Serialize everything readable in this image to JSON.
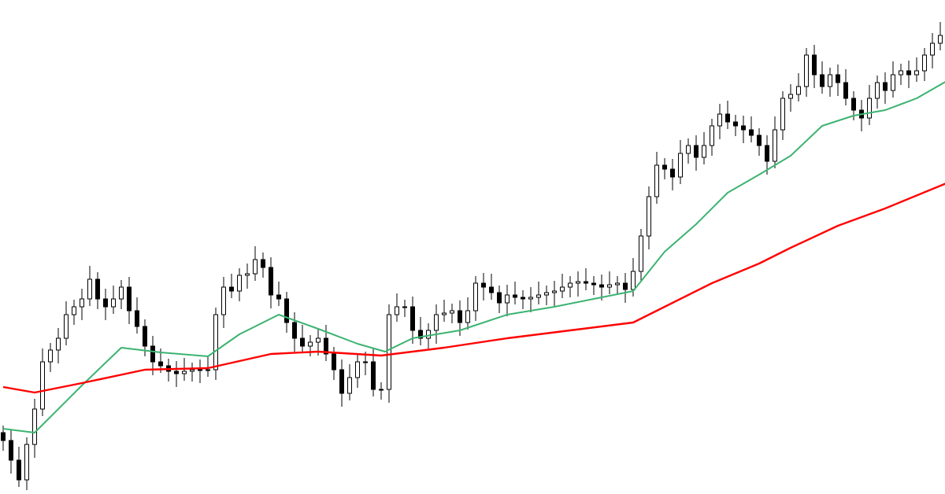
{
  "chart_data": {
    "type": "candlestick",
    "title": "",
    "xlabel": "",
    "ylabel": "",
    "ylim": [
      0,
      62.8
    ],
    "grid": false,
    "axes_visible": false,
    "colors": {
      "background": "#ffffff",
      "bull_body": "#ffffff",
      "bear_body": "#000000",
      "candle_outline": "#000000",
      "ma_fast": "#3cb371",
      "ma_slow": "#ff0000"
    },
    "close": [
      6.8,
      4.3,
      1.8,
      6.3,
      10.8,
      16.8,
      18.3,
      19.8,
      22.8,
      23.8,
      24.8,
      27.3,
      24.8,
      23.8,
      24.8,
      26.3,
      23.3,
      21.3,
      18.8,
      16.8,
      16.3,
      15.6,
      15.3,
      15.6,
      15.8,
      15.8,
      15.8,
      22.8,
      26.3,
      25.8,
      27.8,
      28.0,
      29.8,
      28.8,
      25.3,
      24.8,
      21.8,
      19.8,
      18.8,
      19.3,
      19.8,
      17.8,
      15.8,
      12.8,
      14.8,
      16.8,
      16.8,
      13.3,
      13.3,
      22.8,
      23.8,
      23.8,
      20.8,
      19.8,
      20.8,
      22.8,
      23.0,
      23.3,
      21.8,
      23.3,
      26.8,
      26.3,
      25.6,
      24.3,
      25.3,
      25.0,
      24.8,
      25.0,
      25.3,
      25.6,
      25.8,
      26.3,
      26.8,
      27.0,
      26.8,
      26.6,
      26.3,
      26.6,
      26.8,
      26.0,
      28.3,
      32.8,
      37.8,
      41.8,
      41.3,
      40.3,
      43.3,
      44.3,
      42.8,
      44.3,
      46.8,
      48.3,
      47.3,
      46.8,
      46.3,
      45.6,
      44.3,
      42.3,
      46.3,
      50.3,
      50.8,
      51.8,
      55.8,
      53.3,
      51.8,
      53.3,
      52.3,
      50.3,
      48.8,
      47.8,
      50.3,
      52.3,
      51.3,
      53.3,
      53.8,
      53.3,
      53.8,
      55.8,
      57.3,
      58.3
    ],
    "series": [
      {
        "kind": "moving-average",
        "color": "#3cb371",
        "x": [
          0,
          4,
          10,
          15,
          20,
          26,
          30,
          35,
          40,
          45,
          48.5,
          52,
          58,
          64,
          70,
          76,
          80,
          84,
          88,
          92,
          96,
          100,
          104,
          108,
          112,
          116,
          120
        ],
        "values": [
          8.3,
          7.8,
          13.8,
          18.6,
          18.0,
          17.5,
          20.3,
          22.8,
          21.0,
          19.1,
          18.1,
          19.8,
          20.8,
          22.8,
          23.8,
          25.0,
          25.8,
          30.8,
          34.3,
          38.3,
          40.6,
          43.0,
          46.8,
          48.1,
          48.8,
          50.3,
          52.6
        ]
      },
      {
        "kind": "moving-average",
        "color": "#ff0000",
        "x": [
          0,
          4,
          10,
          18,
          26,
          34,
          40,
          48,
          56,
          64,
          72,
          80,
          84,
          90,
          96,
          100,
          106,
          112,
          120
        ],
        "values": [
          13.6,
          12.9,
          14.1,
          15.8,
          16.0,
          17.8,
          18.1,
          17.6,
          18.6,
          19.8,
          20.8,
          21.8,
          23.8,
          26.8,
          29.3,
          31.3,
          34.1,
          36.3,
          39.6
        ]
      }
    ]
  }
}
